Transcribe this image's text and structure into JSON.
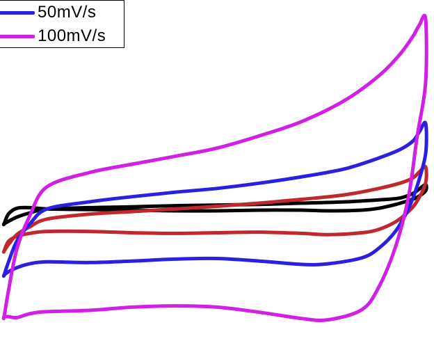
{
  "chart_data": {
    "type": "line",
    "title": "",
    "xlabel": "",
    "ylabel": "",
    "axes_visible": false,
    "grid": false,
    "legend_position": "top-left",
    "xlim": [
      0,
      1
    ],
    "ylim": [
      -1,
      1
    ],
    "series": [
      {
        "key": "s10",
        "color": "#000000",
        "legend": false,
        "x": [
          0.0,
          0.01,
          0.03,
          0.06,
          0.1,
          0.2,
          0.3,
          0.4,
          0.5,
          0.6,
          0.7,
          0.8,
          0.88,
          0.93,
          0.96,
          0.975,
          0.99,
          0.99,
          0.97,
          0.95,
          0.92,
          0.88,
          0.84,
          0.76,
          0.7,
          0.6,
          0.5,
          0.4,
          0.3,
          0.2,
          0.1,
          0.06,
          0.03,
          0.01,
          0.0
        ],
        "y": [
          -0.32,
          -0.305,
          -0.278,
          -0.252,
          -0.228,
          -0.219,
          -0.214,
          -0.207,
          -0.203,
          -0.199,
          -0.191,
          -0.183,
          -0.171,
          -0.159,
          -0.131,
          -0.103,
          -0.075,
          -0.115,
          -0.155,
          -0.175,
          -0.199,
          -0.223,
          -0.235,
          -0.239,
          -0.235,
          -0.235,
          -0.239,
          -0.239,
          -0.235,
          -0.231,
          -0.227,
          -0.219,
          -0.223,
          -0.259,
          -0.32
        ]
      },
      {
        "key": "s20",
        "color": "#c0282e",
        "legend": false,
        "x": [
          0.0,
          0.01,
          0.03,
          0.06,
          0.1,
          0.2,
          0.3,
          0.4,
          0.5,
          0.6,
          0.7,
          0.8,
          0.88,
          0.93,
          0.96,
          0.975,
          0.99,
          0.99,
          0.97,
          0.95,
          0.92,
          0.88,
          0.84,
          0.76,
          0.7,
          0.6,
          0.5,
          0.4,
          0.3,
          0.2,
          0.1,
          0.06,
          0.03,
          0.01,
          0.0
        ],
        "y": [
          -0.49,
          -0.45,
          -0.387,
          -0.339,
          -0.291,
          -0.26,
          -0.244,
          -0.228,
          -0.211,
          -0.191,
          -0.167,
          -0.139,
          -0.099,
          -0.066,
          -0.034,
          0.003,
          0.036,
          -0.066,
          -0.179,
          -0.243,
          -0.307,
          -0.355,
          -0.376,
          -0.388,
          -0.38,
          -0.372,
          -0.376,
          -0.38,
          -0.376,
          -0.368,
          -0.368,
          -0.38,
          -0.398,
          -0.43,
          -0.49
        ]
      },
      {
        "key": "s50",
        "color": "#2b1fe0",
        "legend": true,
        "x": [
          0.0,
          0.01,
          0.03,
          0.06,
          0.1,
          0.2,
          0.3,
          0.4,
          0.5,
          0.6,
          0.7,
          0.8,
          0.88,
          0.93,
          0.96,
          0.975,
          0.99,
          0.99,
          0.97,
          0.95,
          0.92,
          0.88,
          0.84,
          0.76,
          0.7,
          0.6,
          0.5,
          0.4,
          0.3,
          0.2,
          0.1,
          0.06,
          0.03,
          0.01,
          0.0
        ],
        "y": [
          -0.64,
          -0.56,
          -0.427,
          -0.322,
          -0.228,
          -0.183,
          -0.151,
          -0.123,
          -0.099,
          -0.066,
          -0.026,
          0.023,
          0.091,
          0.144,
          0.196,
          0.253,
          0.308,
          0.116,
          -0.086,
          -0.224,
          -0.365,
          -0.473,
          -0.533,
          -0.57,
          -0.574,
          -0.553,
          -0.537,
          -0.541,
          -0.553,
          -0.562,
          -0.558,
          -0.57,
          -0.594,
          -0.62,
          -0.64
        ]
      },
      {
        "key": "s100",
        "color": "#d21fe6",
        "legend": true,
        "x": [
          0.0,
          0.01,
          0.03,
          0.06,
          0.1,
          0.2,
          0.3,
          0.4,
          0.5,
          0.6,
          0.7,
          0.8,
          0.88,
          0.93,
          0.96,
          0.975,
          0.99,
          0.99,
          0.97,
          0.95,
          0.92,
          0.88,
          0.84,
          0.76,
          0.7,
          0.6,
          0.5,
          0.4,
          0.3,
          0.2,
          0.1,
          0.06,
          0.03,
          0.01,
          0.0
        ],
        "y": [
          -0.9,
          -0.74,
          -0.475,
          -0.271,
          -0.09,
          0.0,
          0.052,
          0.101,
          0.153,
          0.23,
          0.32,
          0.451,
          0.604,
          0.74,
          0.85,
          0.92,
          0.96,
          0.56,
          0.22,
          -0.15,
          -0.459,
          -0.716,
          -0.857,
          -0.92,
          -0.912,
          -0.873,
          -0.841,
          -0.833,
          -0.841,
          -0.861,
          -0.869,
          -0.882,
          -0.906,
          -0.9,
          -0.9
        ]
      }
    ],
    "legend": [
      {
        "label": "50mV/s",
        "color": "#2b1fe0"
      },
      {
        "label": "100mV/s",
        "color": "#d21fe6"
      }
    ]
  }
}
